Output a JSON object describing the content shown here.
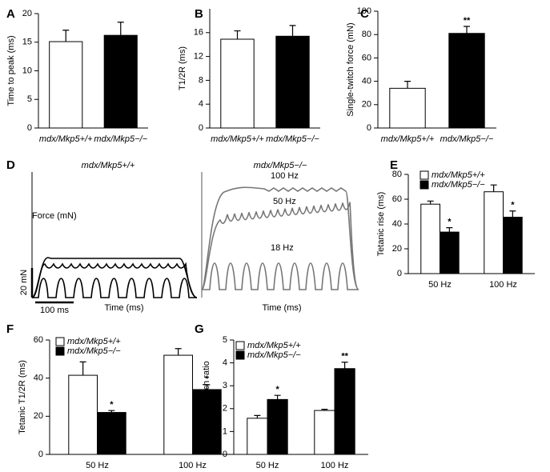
{
  "chart_data": [
    {
      "type": "bar",
      "label": "A",
      "ylabel": "Time to peak (ms)",
      "categories": [
        "mdx/Mkp5+/+",
        "mdx/Mkp5−/−"
      ],
      "values": [
        15.1,
        16.2
      ],
      "errors": [
        2.0,
        2.3
      ],
      "colors": [
        "#ffffff",
        "#000000"
      ],
      "ylim": [
        0,
        20
      ],
      "yticks": [
        0,
        5,
        10,
        15,
        20
      ]
    },
    {
      "type": "bar",
      "label": "B",
      "ylabel": "T1/2R (ms)",
      "categories": [
        "mdx/Mkp5+/+",
        "mdx/Mkp5−/−"
      ],
      "values": [
        14.9,
        15.4
      ],
      "errors": [
        1.4,
        1.8
      ],
      "colors": [
        "#ffffff",
        "#000000"
      ],
      "ylim": [
        0,
        20
      ],
      "yticks": [
        0,
        4,
        8,
        12,
        16
      ]
    },
    {
      "type": "bar",
      "label": "C",
      "ylabel": "Single-twitch force (mN)",
      "categories": [
        "mdx/Mkp5+/+",
        "mdx/Mkp5−/−"
      ],
      "values": [
        34,
        81
      ],
      "errors": [
        6,
        6
      ],
      "annotations": [
        null,
        "**"
      ],
      "colors": [
        "#ffffff",
        "#000000"
      ],
      "ylim": [
        0,
        100
      ],
      "yticks": [
        0,
        20,
        40,
        60,
        80,
        100
      ]
    },
    {
      "type": "trace",
      "label": "D",
      "titles": [
        "mdx/Mkp5+/+",
        "mdx/Mkp5−/−"
      ],
      "ylabel": "Force (mN)",
      "xlabels": [
        "Time (ms)",
        "Time (ms)"
      ],
      "scale_labels": [
        "20 mN",
        "100 ms"
      ],
      "trace_labels": [
        "100 Hz",
        "50 Hz",
        "18 Hz"
      ]
    },
    {
      "type": "grouped-bar",
      "label": "E",
      "ylabel": "Tetanic rise (ms)",
      "categories": [
        "50 Hz",
        "100 Hz"
      ],
      "ylim": [
        0,
        80
      ],
      "yticks": [
        0,
        20,
        40,
        60,
        80
      ],
      "series": [
        {
          "name": "mdx/Mkp5+/+",
          "color": "#ffffff",
          "values": [
            56,
            66
          ],
          "errors": [
            2.5,
            5.5
          ]
        },
        {
          "name": "mdx/Mkp5−/−",
          "color": "#000000",
          "values": [
            33.5,
            45.5
          ],
          "errors": [
            3.5,
            5
          ],
          "annotations": [
            "*",
            "*"
          ]
        }
      ]
    },
    {
      "type": "grouped-bar",
      "label": "F",
      "ylabel": "Tetanic T1/2R (ms)",
      "categories": [
        "50 Hz",
        "100 Hz"
      ],
      "ylim": [
        0,
        60
      ],
      "yticks": [
        0,
        20,
        40,
        60
      ],
      "series": [
        {
          "name": "mdx/Mkp5+/+",
          "color": "#ffffff",
          "values": [
            41.5,
            52
          ],
          "errors": [
            7,
            3.5
          ]
        },
        {
          "name": "mdx/Mkp5−/−",
          "color": "#000000",
          "values": [
            22,
            34
          ],
          "errors": [
            1,
            2.5
          ],
          "annotations": [
            "*",
            "*"
          ]
        }
      ]
    },
    {
      "type": "grouped-bar",
      "label": "G",
      "ylabel": "Tetanic/twitch ratio",
      "categories": [
        "50 Hz",
        "100 Hz"
      ],
      "ylim": [
        0,
        5
      ],
      "yticks": [
        0,
        1,
        2,
        3,
        4,
        5
      ],
      "series": [
        {
          "name": "mdx/Mkp5+/+",
          "color": "#ffffff",
          "values": [
            1.58,
            1.92
          ],
          "errors": [
            0.12,
            0.05
          ]
        },
        {
          "name": "mdx/Mkp5−/−",
          "color": "#000000",
          "values": [
            2.4,
            3.75
          ],
          "errors": [
            0.18,
            0.28
          ],
          "annotations": [
            "*",
            "**"
          ]
        }
      ]
    }
  ]
}
